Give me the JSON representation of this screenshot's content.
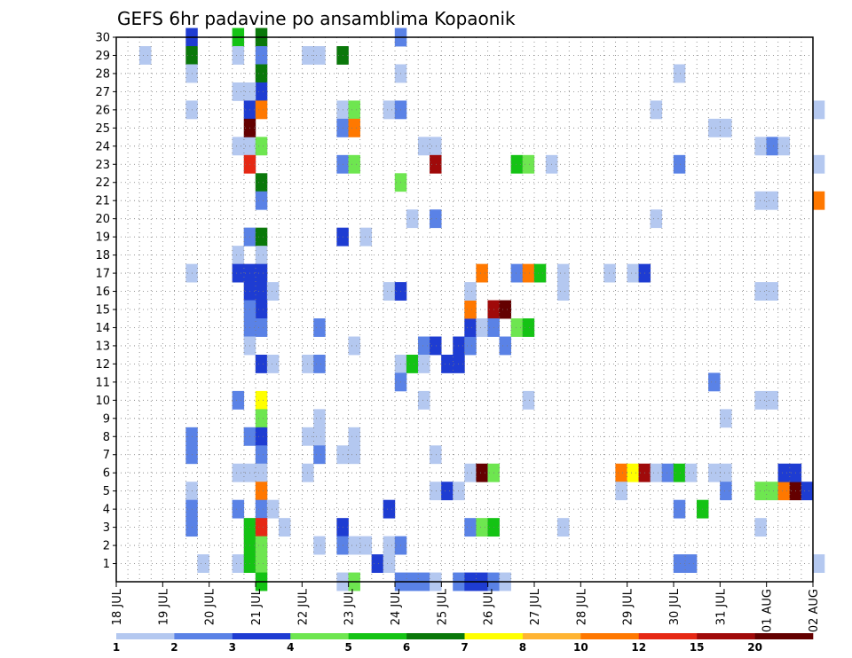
{
  "chart_data": {
    "type": "heatmap",
    "title": "GEFS 6hr padavine po ansamblima Kopaonik",
    "xlabel": "",
    "ylabel": "",
    "x_ticks": [
      "18 JUL",
      "19 JUL",
      "20 JUL",
      "21 JUL",
      "22 JUL",
      "23 JUL",
      "24 JUL",
      "25 JUL",
      "26 JUL",
      "27 JUL",
      "28 JUL",
      "29 JUL",
      "30 JUL",
      "31 JUL",
      "01 AUG",
      "02 AUG"
    ],
    "y_ticks": [
      1,
      2,
      3,
      4,
      5,
      6,
      7,
      8,
      9,
      10,
      11,
      12,
      13,
      14,
      15,
      16,
      17,
      18,
      19,
      20,
      21,
      22,
      23,
      24,
      25,
      26,
      27,
      28,
      29,
      30
    ],
    "ylim": [
      0,
      30
    ],
    "grid": true,
    "time_step_hours": 6,
    "colorbar": {
      "labels": [
        "1",
        "2",
        "3",
        "4",
        "5",
        "6",
        "7",
        "8",
        "10",
        "12",
        "15",
        "20"
      ],
      "colors": [
        "#b4c8f0",
        "#5a82e6",
        "#1e3cd2",
        "#6ee650",
        "#14c314",
        "#0a780a",
        "#ffff00",
        "#ffb432",
        "#ff7800",
        "#e62814",
        "#a00a0a",
        "#640000"
      ]
    },
    "cells": [
      [
        0.5,
        29,
        1
      ],
      [
        1.5,
        30,
        3
      ],
      [
        1.5,
        29,
        6
      ],
      [
        1.5,
        28,
        1
      ],
      [
        1.5,
        26,
        1
      ],
      [
        1.5,
        17,
        1
      ],
      [
        1.5,
        8,
        2
      ],
      [
        1.5,
        7,
        2
      ],
      [
        1.5,
        5,
        1
      ],
      [
        1.5,
        4,
        2
      ],
      [
        1.5,
        3,
        2
      ],
      [
        1.75,
        1,
        1
      ],
      [
        2.5,
        30,
        5
      ],
      [
        2.5,
        29,
        1
      ],
      [
        2.5,
        27,
        1
      ],
      [
        2.5,
        24,
        1
      ],
      [
        2.75,
        24,
        1
      ],
      [
        2.5,
        18,
        1
      ],
      [
        2.5,
        17,
        3
      ],
      [
        2.5,
        10,
        2
      ],
      [
        2.5,
        6,
        1
      ],
      [
        2.5,
        4,
        2
      ],
      [
        2.5,
        1,
        1
      ],
      [
        2.75,
        19,
        1
      ],
      [
        2.75,
        8,
        1
      ],
      [
        2.75,
        3,
        1
      ],
      [
        3.0,
        30,
        6
      ],
      [
        3.0,
        29,
        2
      ],
      [
        3.0,
        28,
        6
      ],
      [
        3.0,
        27,
        3
      ],
      [
        2.75,
        27,
        1
      ],
      [
        2.75,
        26,
        3
      ],
      [
        3.0,
        26,
        10
      ],
      [
        2.75,
        25,
        20
      ],
      [
        3.0,
        24,
        4
      ],
      [
        2.75,
        23,
        12
      ],
      [
        3.0,
        22,
        6
      ],
      [
        3.0,
        21,
        2
      ],
      [
        2.75,
        19,
        2
      ],
      [
        3.0,
        19,
        6
      ],
      [
        3.0,
        18,
        1
      ],
      [
        2.75,
        17,
        3
      ],
      [
        3.0,
        17,
        3
      ],
      [
        2.75,
        16,
        3
      ],
      [
        3.0,
        16,
        3
      ],
      [
        3.25,
        16,
        1
      ],
      [
        3.0,
        15,
        3
      ],
      [
        2.75,
        15,
        2
      ],
      [
        3.0,
        14,
        2
      ],
      [
        2.75,
        14,
        2
      ],
      [
        2.75,
        13,
        1
      ],
      [
        3.0,
        12,
        3
      ],
      [
        3.25,
        12,
        1
      ],
      [
        3.0,
        10,
        7
      ],
      [
        3.0,
        9,
        4
      ],
      [
        2.75,
        8,
        2
      ],
      [
        3.0,
        8,
        3
      ],
      [
        3.0,
        7,
        2
      ],
      [
        2.75,
        6,
        1
      ],
      [
        3.0,
        6,
        1
      ],
      [
        3.0,
        5,
        10
      ],
      [
        3.0,
        4,
        2
      ],
      [
        3.25,
        4,
        1
      ],
      [
        2.75,
        3,
        5
      ],
      [
        3.0,
        3,
        12
      ],
      [
        2.75,
        2,
        5
      ],
      [
        3.0,
        2,
        4
      ],
      [
        2.75,
        1,
        5
      ],
      [
        3.0,
        1,
        4
      ],
      [
        3.0,
        0,
        5
      ],
      [
        3.5,
        3,
        1
      ],
      [
        4.0,
        29,
        1
      ],
      [
        4.25,
        29,
        1
      ],
      [
        4.25,
        14,
        2
      ],
      [
        4.0,
        12,
        1
      ],
      [
        4.25,
        12,
        2
      ],
      [
        4.25,
        9,
        1
      ],
      [
        4.0,
        8,
        1
      ],
      [
        4.25,
        8,
        1
      ],
      [
        4.25,
        7,
        2
      ],
      [
        4.0,
        6,
        1
      ],
      [
        4.25,
        2,
        1
      ],
      [
        4.75,
        29,
        6
      ],
      [
        4.75,
        26,
        1
      ],
      [
        5.0,
        26,
        4
      ],
      [
        4.75,
        25,
        2
      ],
      [
        5.0,
        25,
        10
      ],
      [
        4.75,
        23,
        2
      ],
      [
        5.0,
        23,
        4
      ],
      [
        4.75,
        19,
        3
      ],
      [
        5.25,
        19,
        1
      ],
      [
        5.0,
        13,
        1
      ],
      [
        4.75,
        7,
        1
      ],
      [
        5.0,
        7,
        1
      ],
      [
        5.0,
        8,
        1
      ],
      [
        4.75,
        3,
        3
      ],
      [
        4.75,
        2,
        2
      ],
      [
        5.0,
        2,
        1
      ],
      [
        5.25,
        2,
        1
      ],
      [
        5.5,
        1,
        3
      ],
      [
        5.75,
        1,
        1
      ],
      [
        4.75,
        0,
        1
      ],
      [
        5.0,
        0,
        4
      ],
      [
        5.75,
        26,
        1
      ],
      [
        6.0,
        26,
        2
      ],
      [
        6.0,
        30,
        2
      ],
      [
        6.0,
        28,
        1
      ],
      [
        6.0,
        22,
        4
      ],
      [
        6.25,
        20,
        1
      ],
      [
        5.75,
        16,
        1
      ],
      [
        6.0,
        16,
        3
      ],
      [
        6.0,
        12,
        1
      ],
      [
        6.25,
        12,
        5
      ],
      [
        6.0,
        11,
        2
      ],
      [
        5.75,
        4,
        3
      ],
      [
        5.75,
        2,
        1
      ],
      [
        6.0,
        2,
        2
      ],
      [
        6.0,
        0,
        2
      ],
      [
        6.25,
        0,
        2
      ],
      [
        6.5,
        24,
        1
      ],
      [
        6.75,
        24,
        1
      ],
      [
        6.75,
        23,
        15
      ],
      [
        6.75,
        20,
        2
      ],
      [
        6.5,
        13,
        2
      ],
      [
        6.75,
        13,
        3
      ],
      [
        6.5,
        12,
        1
      ],
      [
        6.5,
        10,
        1
      ],
      [
        6.75,
        7,
        1
      ],
      [
        6.75,
        5,
        1
      ],
      [
        7.0,
        5,
        3
      ],
      [
        7.25,
        5,
        1
      ],
      [
        6.5,
        0,
        2
      ],
      [
        6.75,
        0,
        1
      ],
      [
        7.0,
        12,
        3
      ],
      [
        7.25,
        12,
        3
      ],
      [
        7.25,
        13,
        3
      ],
      [
        7.5,
        13,
        2
      ],
      [
        7.5,
        14,
        3
      ],
      [
        7.5,
        15,
        10
      ],
      [
        7.5,
        16,
        1
      ],
      [
        7.75,
        14,
        1
      ],
      [
        7.75,
        17,
        10
      ],
      [
        7.5,
        6,
        1
      ],
      [
        7.75,
        6,
        20
      ],
      [
        8.0,
        6,
        4
      ],
      [
        8.0,
        15,
        15
      ],
      [
        8.25,
        15,
        20
      ],
      [
        8.0,
        14,
        2
      ],
      [
        8.25,
        13,
        2
      ],
      [
        7.5,
        3,
        2
      ],
      [
        7.75,
        3,
        4
      ],
      [
        8.0,
        3,
        5
      ],
      [
        7.25,
        0,
        2
      ],
      [
        7.5,
        0,
        3
      ],
      [
        7.75,
        0,
        3
      ],
      [
        8.0,
        0,
        2
      ],
      [
        8.25,
        0,
        1
      ],
      [
        8.5,
        23,
        5
      ],
      [
        8.75,
        23,
        4
      ],
      [
        9.25,
        23,
        1
      ],
      [
        8.5,
        17,
        2
      ],
      [
        8.75,
        17,
        10
      ],
      [
        9.0,
        17,
        5
      ],
      [
        8.5,
        14,
        4
      ],
      [
        8.75,
        14,
        5
      ],
      [
        8.75,
        10,
        1
      ],
      [
        9.5,
        17,
        1
      ],
      [
        9.5,
        16,
        1
      ],
      [
        9.5,
        3,
        1
      ],
      [
        10.5,
        17,
        1
      ],
      [
        11.0,
        17,
        1
      ],
      [
        11.25,
        17,
        3
      ],
      [
        11.5,
        26,
        1
      ],
      [
        11.5,
        20,
        1
      ],
      [
        10.75,
        6,
        10
      ],
      [
        11.0,
        6,
        7
      ],
      [
        11.25,
        6,
        15
      ],
      [
        11.5,
        6,
        1
      ],
      [
        11.75,
        6,
        2
      ],
      [
        10.75,
        5,
        1
      ],
      [
        12.0,
        28,
        1
      ],
      [
        12.0,
        23,
        2
      ],
      [
        12.0,
        6,
        5
      ],
      [
        12.25,
        6,
        1
      ],
      [
        12.0,
        4,
        2
      ],
      [
        12.0,
        1,
        2
      ],
      [
        12.25,
        1,
        2
      ],
      [
        12.5,
        4,
        5
      ],
      [
        12.75,
        11,
        2
      ],
      [
        12.75,
        6,
        1
      ],
      [
        13.0,
        6,
        1
      ],
      [
        13.0,
        5,
        2
      ],
      [
        13.0,
        9,
        1
      ],
      [
        12.75,
        25,
        1
      ],
      [
        13.0,
        25,
        1
      ],
      [
        13.75,
        24,
        1
      ],
      [
        14.0,
        24,
        2
      ],
      [
        14.25,
        24,
        1
      ],
      [
        13.75,
        21,
        1
      ],
      [
        14.0,
        21,
        1
      ],
      [
        13.75,
        16,
        1
      ],
      [
        14.0,
        16,
        1
      ],
      [
        13.75,
        10,
        1
      ],
      [
        14.0,
        10,
        1
      ],
      [
        13.75,
        5,
        4
      ],
      [
        14.0,
        5,
        4
      ],
      [
        14.25,
        5,
        10
      ],
      [
        14.5,
        5,
        20
      ],
      [
        14.25,
        6,
        3
      ],
      [
        14.5,
        6,
        3
      ],
      [
        14.75,
        5,
        3
      ],
      [
        13.75,
        3,
        1
      ],
      [
        15.0,
        26,
        1
      ],
      [
        15.0,
        23,
        1
      ],
      [
        15.0,
        21,
        10
      ],
      [
        15.0,
        1,
        1
      ]
    ]
  }
}
